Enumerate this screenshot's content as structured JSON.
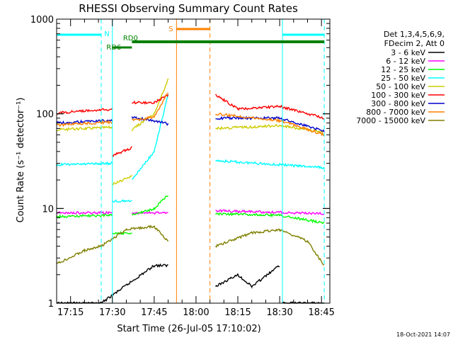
{
  "chart_data": {
    "type": "line",
    "title": "RHESSI Observing Summary Count Rates",
    "xlabel": "Start Time (26-Jul-05 17:10:02)",
    "ylabel": "Count Rate (s⁻¹ detector⁻¹)",
    "y_scale": "log",
    "ylim": [
      1,
      1000
    ],
    "xlim": [
      "17:10",
      "18:48"
    ],
    "x_ticks": [
      "17:15",
      "17:30",
      "17:45",
      "18:00",
      "18:15",
      "18:30",
      "18:45"
    ],
    "y_ticks": [
      "1",
      "10",
      "100",
      "1000"
    ],
    "legend": {
      "placement": "right",
      "header": [
        "Det 1,3,4,5,6,9,",
        "FDecim 2, Att 0"
      ]
    },
    "flags": [
      {
        "label": "N",
        "color": "#00ffff",
        "segments": [
          [
            "17:10",
            "17:26"
          ],
          [
            "18:31",
            "18:46"
          ]
        ]
      },
      {
        "label": "S",
        "color": "#ff7f00",
        "segments": [
          [
            "17:53",
            "18:05"
          ]
        ]
      },
      {
        "label": "RD0",
        "color": "#007f00",
        "segments": [
          [
            "17:37",
            "18:46"
          ]
        ]
      },
      {
        "label": "RD6",
        "color": "#007f00",
        "segments": [
          [
            "17:30",
            "17:37"
          ]
        ]
      }
    ],
    "markers": [
      {
        "time": "17:10",
        "color": "#00ffff",
        "style": "solid"
      },
      {
        "time": "17:26",
        "color": "#00ffff",
        "style": "dashed"
      },
      {
        "time": "17:30",
        "color": "#00ffff",
        "style": "solid"
      },
      {
        "time": "17:53",
        "color": "#ff7f00",
        "style": "solid"
      },
      {
        "time": "18:05",
        "color": "#ff7f00",
        "style": "dashed"
      },
      {
        "time": "18:31",
        "color": "#00ffff",
        "style": "solid"
      },
      {
        "time": "18:46",
        "color": "#00ffff",
        "style": "dashed"
      }
    ],
    "series": [
      {
        "name": "3 - 6 keV",
        "color": "#000000",
        "segments": [
          [
            [
              "17:10",
              1
            ],
            [
              "17:26",
              1
            ]
          ],
          [
            [
              "17:26",
              1
            ],
            [
              "17:45",
              2.5
            ],
            [
              "17:50",
              2.5
            ]
          ],
          [
            [
              "18:07",
              1.5
            ],
            [
              "18:15",
              2
            ],
            [
              "18:20",
              1.5
            ],
            [
              "18:30",
              2.5
            ]
          ],
          [
            [
              "18:31",
              1
            ],
            [
              "18:46",
              1
            ]
          ]
        ]
      },
      {
        "name": "6 - 12 keV",
        "color": "#ff00ff",
        "segments": [
          [
            [
              "17:10",
              9
            ],
            [
              "17:30",
              9
            ]
          ],
          [
            [
              "17:37",
              9
            ],
            [
              "17:50",
              9
            ]
          ],
          [
            [
              "18:07",
              9.5
            ],
            [
              "18:46",
              8.8
            ]
          ]
        ]
      },
      {
        "name": "12 - 25 keV",
        "color": "#00ff00",
        "segments": [
          [
            [
              "17:10",
              8.2
            ],
            [
              "17:30",
              8.5
            ]
          ],
          [
            [
              "17:30",
              5.5
            ],
            [
              "17:37",
              5.5
            ]
          ],
          [
            [
              "17:37",
              8.5
            ],
            [
              "17:45",
              10
            ],
            [
              "17:50",
              14
            ]
          ],
          [
            [
              "18:07",
              8.8
            ],
            [
              "18:30",
              8.5
            ],
            [
              "18:46",
              7
            ]
          ]
        ]
      },
      {
        "name": "25 - 50 keV",
        "color": "#00ffff",
        "segments": [
          [
            [
              "17:10",
              29
            ],
            [
              "17:30",
              30
            ]
          ],
          [
            [
              "17:30",
              12
            ],
            [
              "17:37",
              12
            ]
          ],
          [
            [
              "17:37",
              20
            ],
            [
              "17:45",
              40
            ],
            [
              "17:50",
              160
            ]
          ],
          [
            [
              "18:07",
              32
            ],
            [
              "18:30",
              29
            ],
            [
              "18:46",
              27
            ]
          ]
        ]
      },
      {
        "name": "50 - 100 keV",
        "color": "#cccc00",
        "segments": [
          [
            [
              "17:10",
              68
            ],
            [
              "17:30",
              72
            ]
          ],
          [
            [
              "17:30",
              18
            ],
            [
              "17:37",
              22
            ]
          ],
          [
            [
              "17:37",
              68
            ],
            [
              "17:45",
              100
            ],
            [
              "17:50",
              230
            ]
          ],
          [
            [
              "18:07",
              70
            ],
            [
              "18:30",
              75
            ],
            [
              "18:46",
              64
            ]
          ]
        ]
      },
      {
        "name": "100 - 300 keV",
        "color": "#ff0000",
        "segments": [
          [
            [
              "17:10",
              102
            ],
            [
              "17:30",
              112
            ]
          ],
          [
            [
              "17:30",
              36
            ],
            [
              "17:37",
              44
            ]
          ],
          [
            [
              "17:37",
              132
            ],
            [
              "17:45",
              130
            ],
            [
              "17:50",
              160
            ]
          ],
          [
            [
              "18:07",
              160
            ],
            [
              "18:15",
              112
            ],
            [
              "18:30",
              120
            ],
            [
              "18:46",
              90
            ]
          ]
        ]
      },
      {
        "name": "300 - 800 keV",
        "color": "#0000cc",
        "segments": [
          [
            [
              "17:10",
              80
            ],
            [
              "17:30",
              85
            ]
          ],
          [
            [
              "17:37",
              92
            ],
            [
              "17:45",
              85
            ],
            [
              "17:50",
              78
            ]
          ],
          [
            [
              "18:07",
              90
            ],
            [
              "18:30",
              90
            ],
            [
              "18:46",
              66
            ]
          ]
        ]
      },
      {
        "name": "800 - 7000 keV",
        "color": "#ff7f00",
        "segments": [
          [
            [
              "17:10",
              76
            ],
            [
              "17:30",
              82
            ]
          ],
          [
            [
              "17:37",
              85
            ],
            [
              "17:45",
              92
            ],
            [
              "17:50",
              170
            ]
          ],
          [
            [
              "18:07",
              100
            ],
            [
              "18:30",
              85
            ],
            [
              "18:46",
              60
            ]
          ]
        ]
      },
      {
        "name": "7000 - 15000 keV",
        "color": "#7f7f00",
        "segments": [
          [
            [
              "17:10",
              2.6
            ],
            [
              "17:20",
              3.6
            ],
            [
              "17:26",
              4
            ]
          ],
          [
            [
              "17:26",
              4
            ],
            [
              "17:35",
              6
            ],
            [
              "17:45",
              6.5
            ],
            [
              "17:50",
              4.5
            ]
          ],
          [
            [
              "18:07",
              4
            ],
            [
              "18:20",
              5.5
            ],
            [
              "18:30",
              6
            ],
            [
              "18:40",
              4.5
            ],
            [
              "18:46",
              2.5
            ]
          ]
        ]
      }
    ]
  },
  "footer": {
    "date": "18-Oct-2021 14:07"
  }
}
